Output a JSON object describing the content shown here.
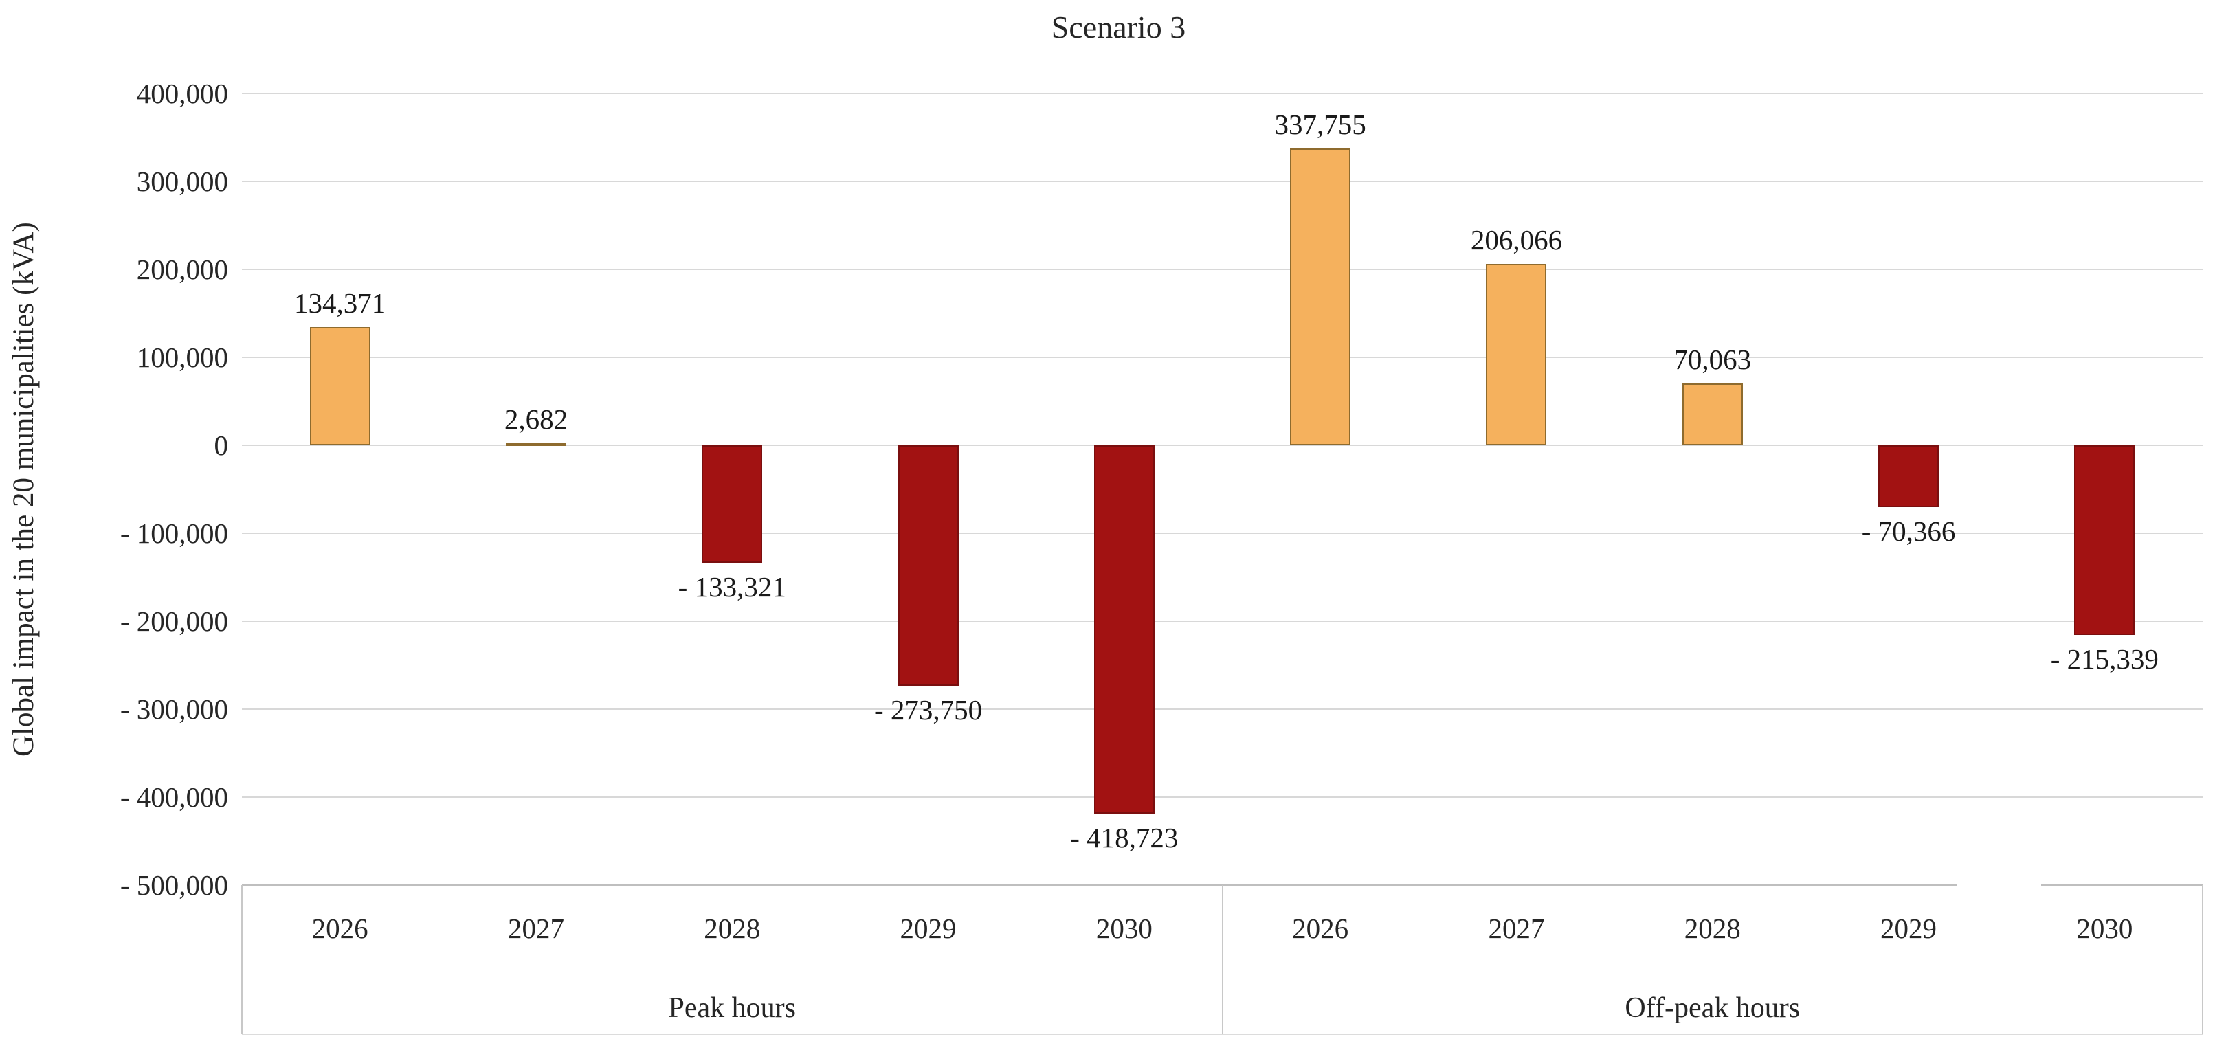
{
  "chart_data": {
    "type": "bar",
    "title": "Scenario 3",
    "ylabel": "Global impact in the 20 municipalities (kVA)",
    "xlabel": "",
    "ylim": [
      -500000,
      400000
    ],
    "ytick_interval": 100000,
    "ytick_labels": [
      "400,000",
      "300,000",
      "200,000",
      "100,000",
      "0",
      "- 100,000",
      "- 200,000",
      "- 300,000",
      "- 400,000",
      "- 500,000"
    ],
    "grid": "on",
    "legend": "none",
    "categories": [
      "2026",
      "2027",
      "2028",
      "2029",
      "2030"
    ],
    "series_note": "single series split in two category groups; positive bars orange, negative bars dark red",
    "groups": [
      {
        "label": "Peak hours",
        "categories": [
          "2026",
          "2027",
          "2028",
          "2029",
          "2030"
        ],
        "values": [
          134371,
          2682,
          -133321,
          -273750,
          -418723
        ],
        "value_labels": [
          "134,371",
          "2,682",
          "- 133,321",
          "- 273,750",
          "- 418,723"
        ]
      },
      {
        "label": "Off-peak hours",
        "categories": [
          "2026",
          "2027",
          "2028",
          "2029",
          "2030"
        ],
        "values": [
          337755,
          206066,
          70063,
          -70366,
          -215339
        ],
        "value_labels": [
          "337,755",
          "206,066",
          "70,063",
          "- 70,366",
          "- 215,339"
        ]
      }
    ],
    "colors": {
      "positive_fill": "#f5b15d",
      "positive_border": "#8e6b2e",
      "negative_fill": "#a21212",
      "negative_border": "#7a0f0f",
      "gridline": "#d8d8d8",
      "axis_line": "#bfbfbf",
      "text": "#262626"
    }
  }
}
